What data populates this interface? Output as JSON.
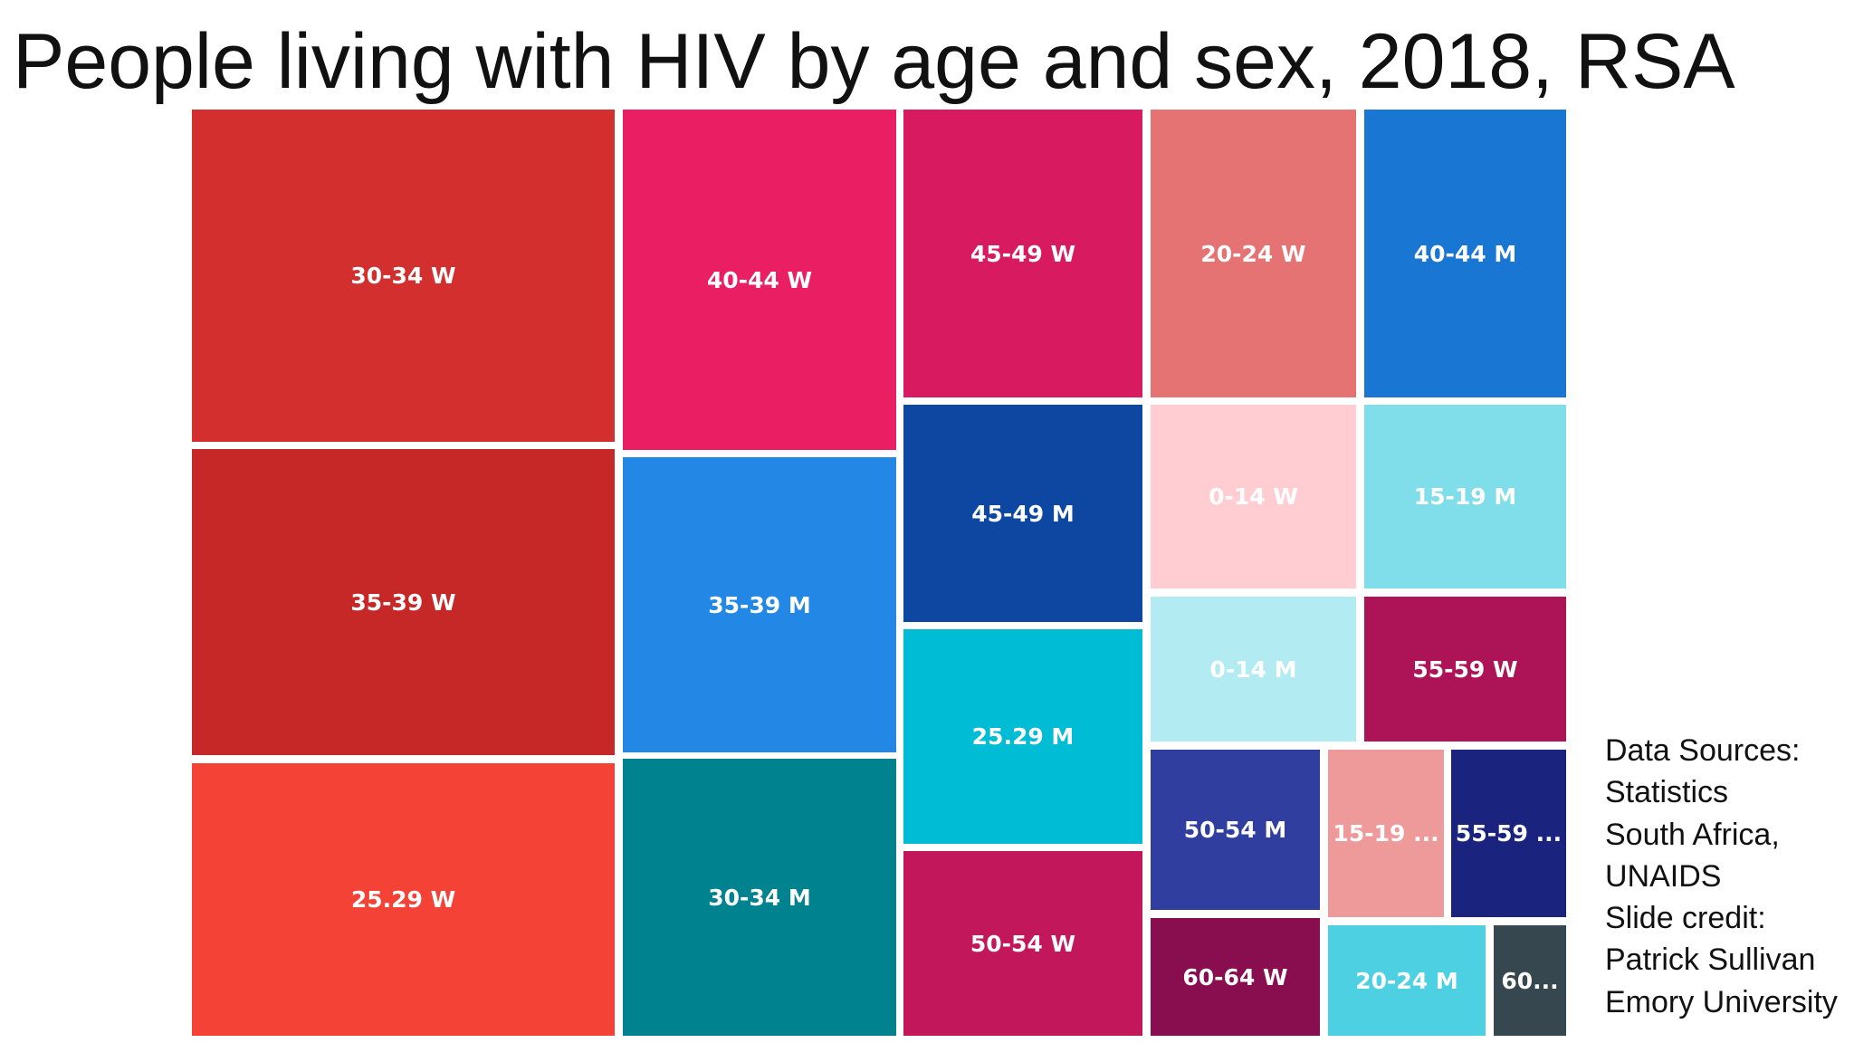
{
  "title": "People living with HIV by age and sex, 2018, RSA",
  "chart_data": {
    "type": "treemap",
    "value_unit": "relative tile size (estimated from tile areas)",
    "tiles": [
      {
        "label": "30-34 W",
        "value": 100,
        "color": "#D32F2F"
      },
      {
        "label": "35-39 W",
        "value": 93,
        "color": "#C62828"
      },
      {
        "label": "25.29 W",
        "value": 81,
        "color": "#F44336"
      },
      {
        "label": "40-44 W",
        "value": 70,
        "color": "#E91E63"
      },
      {
        "label": "35-39 M",
        "value": 60,
        "color": "#2287E5"
      },
      {
        "label": "30-34 M",
        "value": 57,
        "color": "#00838F"
      },
      {
        "label": "45-49 W",
        "value": 50,
        "color": "#D81B60"
      },
      {
        "label": "45-49 M",
        "value": 38,
        "color": "#0D47A1"
      },
      {
        "label": "25.29 M",
        "value": 37,
        "color": "#00BCD4"
      },
      {
        "label": "50-54 W",
        "value": 30,
        "color": "#C2185B"
      },
      {
        "label": "20-24 W",
        "value": 43,
        "color": "#E57373"
      },
      {
        "label": "40-44 M",
        "value": 42,
        "color": "#1976D2"
      },
      {
        "label": "0-14 W",
        "value": 27,
        "color": "#FFCDD2"
      },
      {
        "label": "15-19 M",
        "value": 27,
        "color": "#80DEEA"
      },
      {
        "label": "0-14 M",
        "value": 16,
        "color": "#B2EBF2"
      },
      {
        "label": "55-59 W",
        "value": 16,
        "color": "#AD1457"
      },
      {
        "label": "50-54 M",
        "value": 16,
        "color": "#303F9F"
      },
      {
        "label": "15-19 ...",
        "value": 12,
        "color": "#EF9A9A"
      },
      {
        "label": "55-59 ...",
        "value": 12,
        "color": "#1A237E"
      },
      {
        "label": "60-64 W",
        "value": 11,
        "color": "#880E4F"
      },
      {
        "label": "20-24 M",
        "value": 9,
        "color": "#4DD0E1"
      },
      {
        "label": "60...",
        "value": 4,
        "color": "#37474F"
      }
    ]
  },
  "sources": {
    "lines": [
      "Data Sources:",
      "Statistics",
      "South Africa,",
      "UNAIDS",
      "Slide credit:",
      "Patrick Sullivan",
      "Emory University"
    ]
  }
}
